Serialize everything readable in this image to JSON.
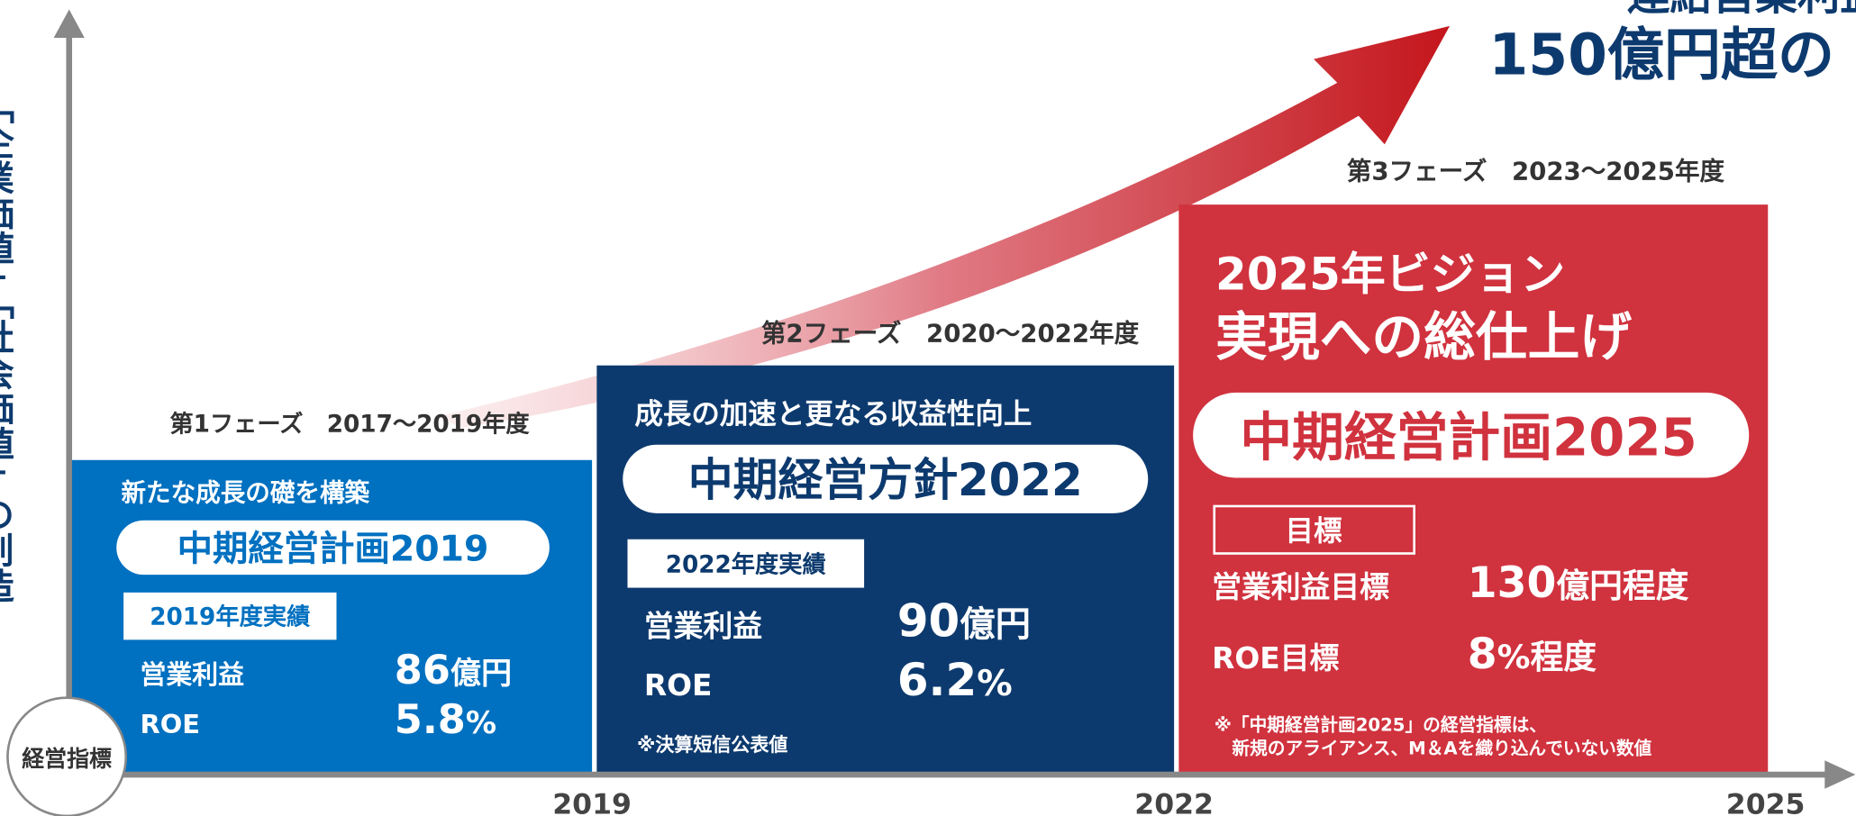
{
  "axis": {
    "vertical_label": "「企業価値」「社会価値」の創造",
    "origin_label": "経営指標",
    "years": [
      "2019",
      "2022",
      "2025"
    ]
  },
  "goal": {
    "line1": "連結営業利益",
    "line2": "150億円超の"
  },
  "phases": [
    {
      "phase": "第1フェーズ　2017～2019年度",
      "theme": "新たな成長の礎を構築",
      "plan": "中期経営計画2019",
      "result_label": "2019年度実績",
      "metrics": [
        {
          "name": "営業利益",
          "value": "86",
          "unit": "億円"
        },
        {
          "name": "ROE",
          "value": "5.8",
          "unit": "%"
        }
      ]
    },
    {
      "phase": "第2フェーズ　2020～2022年度",
      "theme": "成長の加速と更なる収益性向上",
      "plan": "中期経営方針2022",
      "result_label": "2022年度実績",
      "metrics": [
        {
          "name": "営業利益",
          "value": "90",
          "unit": "億円"
        },
        {
          "name": "ROE",
          "value": "6.2",
          "unit": "%"
        }
      ],
      "note": "※決算短信公表値"
    },
    {
      "phase": "第3フェーズ　2023～2025年度",
      "theme_lines": [
        "2025年ビジョン",
        "実現への総仕上げ"
      ],
      "plan": "中期経営計画2025",
      "result_label": "目標",
      "metrics": [
        {
          "name": "営業利益目標",
          "value": "130",
          "unit": "億円程度"
        },
        {
          "name": "ROE目標",
          "value": "8",
          "unit": "%程度"
        }
      ],
      "note_lines": [
        "※「中期経営計画2025」の経営指標は、",
        "　新規のアライアンス、M＆Aを織り込んでいない数値"
      ]
    }
  ]
}
